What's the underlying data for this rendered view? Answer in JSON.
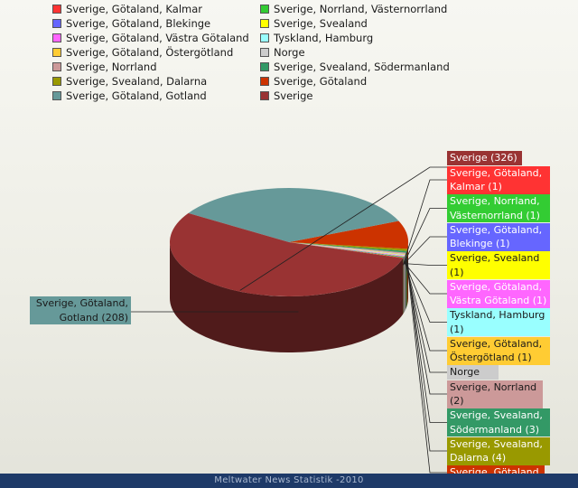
{
  "chart_data": {
    "type": "pie",
    "slices": [
      {
        "label": "Sverige, Götaland, Kalmar",
        "value": 1,
        "color": "#ff3333",
        "callout": "Sverige, Götaland, Kalmar (1)"
      },
      {
        "label": "Sverige, Norrland, Västernorrland",
        "value": 1,
        "color": "#33cc33",
        "callout": "Sverige, Norrland, Västernorrland (1)"
      },
      {
        "label": "Sverige, Götaland, Blekinge",
        "value": 1,
        "color": "#6666ff",
        "callout": "Sverige, Götaland, Blekinge (1)"
      },
      {
        "label": "Sverige, Svealand",
        "value": 1,
        "color": "#ffff00",
        "callout": "Sverige, Svealand (1)"
      },
      {
        "label": "Sverige, Götaland, Västra Götaland",
        "value": 1,
        "color": "#ff66ff",
        "callout": "Sverige, Götaland, Västra Götaland (1)"
      },
      {
        "label": "Tyskland, Hamburg",
        "value": 1,
        "color": "#99ffff",
        "callout": "Tyskland, Hamburg (1)"
      },
      {
        "label": "Sverige, Götaland, Östergötland",
        "value": 1,
        "color": "#ffcc33",
        "callout": "Sverige, Götaland, Östergötland (1)"
      },
      {
        "label": "Norge",
        "value": 1,
        "color": "#cccccc",
        "callout": "Norge (1)"
      },
      {
        "label": "Sverige, Norrland",
        "value": 2,
        "color": "#cc9999",
        "callout": "Sverige, Norrland (2)"
      },
      {
        "label": "Sverige, Svealand, Södermanland",
        "value": 3,
        "color": "#339966",
        "callout": "Sverige, Svealand, Södermanland (3)"
      },
      {
        "label": "Sverige, Svealand, Dalarna",
        "value": 4,
        "color": "#999900",
        "callout": "Sverige, Svealand, Dalarna (4)"
      },
      {
        "label": "Sverige, Götaland",
        "value": null,
        "color": "#cc3300",
        "callout": "Sverige, Götaland"
      },
      {
        "label": "Sverige, Götaland, Gotland",
        "value": 208,
        "color": "#669999",
        "callout": "Sverige, Götaland, Gotland (208)"
      },
      {
        "label": "Sverige",
        "value": 326,
        "color": "#993333",
        "callout": "Sverige (326)"
      }
    ],
    "legend_position": "top"
  },
  "footer": "Meltwater News Statistik -2010"
}
